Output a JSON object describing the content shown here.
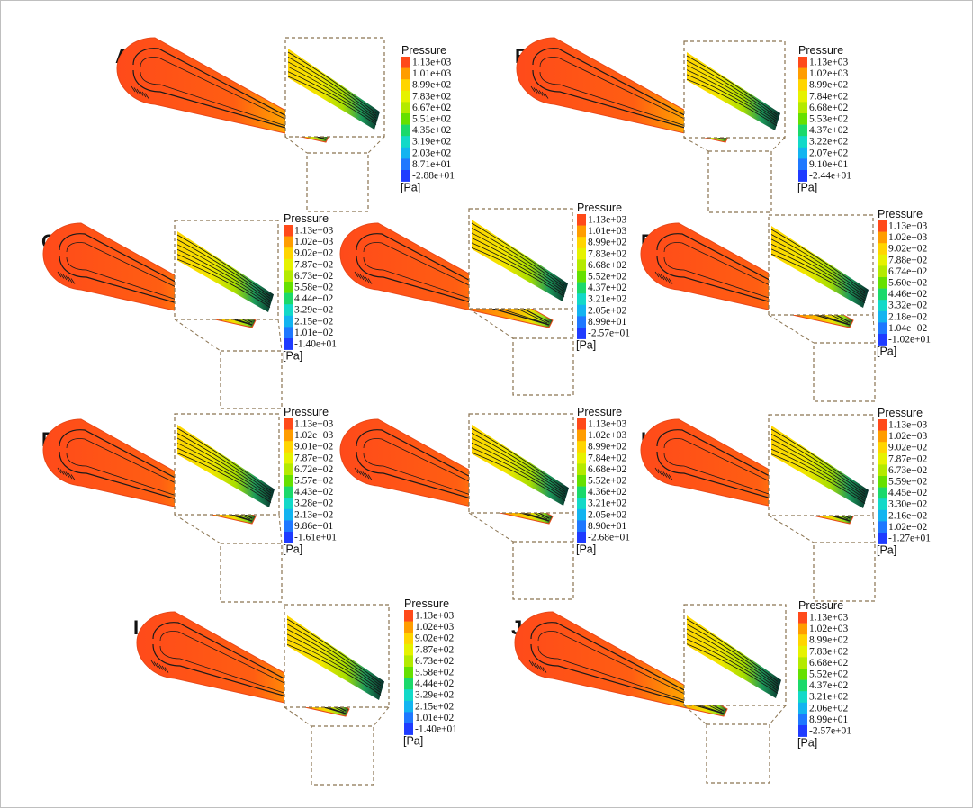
{
  "figure": {
    "legend_title": "Pressure",
    "unit": "[Pa]",
    "colors": [
      "#ff4a1a",
      "#ff9d00",
      "#ffd500",
      "#e6f200",
      "#b4ea00",
      "#66e000",
      "#1bd96b",
      "#13d9c8",
      "#13b4f0",
      "#1f78ff",
      "#1f3cff"
    ],
    "panels": [
      {
        "label": "A",
        "ticks": [
          "1.13e+03",
          "1.01e+03",
          "8.99e+02",
          "7.83e+02",
          "6.67e+02",
          "5.51e+02",
          "4.35e+02",
          "3.19e+02",
          "2.03e+02",
          "8.71e+01",
          "-2.88e+01"
        ]
      },
      {
        "label": "B",
        "ticks": [
          "1.13e+03",
          "1.02e+03",
          "8.99e+02",
          "7.84e+02",
          "6.68e+02",
          "5.53e+02",
          "4.37e+02",
          "3.22e+02",
          "2.07e+02",
          "9.10e+01",
          "-2.44e+01"
        ]
      },
      {
        "label": "C",
        "ticks": [
          "1.13e+03",
          "1.02e+03",
          "9.02e+02",
          "7.87e+02",
          "6.73e+02",
          "5.58e+02",
          "4.44e+02",
          "3.29e+02",
          "2.15e+02",
          "1.01e+02",
          "-1.40e+01"
        ]
      },
      {
        "label": "D",
        "ticks": [
          "1.13e+03",
          "1.01e+03",
          "8.99e+02",
          "7.83e+02",
          "6.68e+02",
          "5.52e+02",
          "4.37e+02",
          "3.21e+02",
          "2.05e+02",
          "8.99e+01",
          "-2.57e+01"
        ]
      },
      {
        "label": "E",
        "ticks": [
          "1.13e+03",
          "1.02e+03",
          "9.02e+02",
          "7.88e+02",
          "6.74e+02",
          "5.60e+02",
          "4.46e+02",
          "3.32e+02",
          "2.18e+02",
          "1.04e+02",
          "-1.02e+01"
        ]
      },
      {
        "label": "F",
        "ticks": [
          "1.13e+03",
          "1.02e+03",
          "9.01e+02",
          "7.87e+02",
          "6.72e+02",
          "5.57e+02",
          "4.43e+02",
          "3.28e+02",
          "2.13e+02",
          "9.86e+01",
          "-1.61e+01"
        ]
      },
      {
        "label": "G",
        "ticks": [
          "1.13e+03",
          "1.02e+03",
          "8.99e+02",
          "7.84e+02",
          "6.68e+02",
          "5.52e+02",
          "4.36e+02",
          "3.21e+02",
          "2.05e+02",
          "8.90e+01",
          "-2.68e+01"
        ]
      },
      {
        "label": "H",
        "ticks": [
          "1.13e+03",
          "1.02e+03",
          "9.02e+02",
          "7.87e+02",
          "6.73e+02",
          "5.59e+02",
          "4.45e+02",
          "3.30e+02",
          "2.16e+02",
          "1.02e+02",
          "-1.27e+01"
        ]
      },
      {
        "label": "I",
        "ticks": [
          "1.13e+03",
          "1.02e+03",
          "9.02e+02",
          "7.87e+02",
          "6.73e+02",
          "5.58e+02",
          "4.44e+02",
          "3.29e+02",
          "2.15e+02",
          "1.01e+02",
          "-1.40e+01"
        ]
      },
      {
        "label": "J",
        "ticks": [
          "1.13e+03",
          "1.02e+03",
          "8.99e+02",
          "7.83e+02",
          "6.68e+02",
          "5.52e+02",
          "4.37e+02",
          "3.21e+02",
          "2.06e+02",
          "8.99e+01",
          "-2.57e+01"
        ]
      }
    ]
  }
}
